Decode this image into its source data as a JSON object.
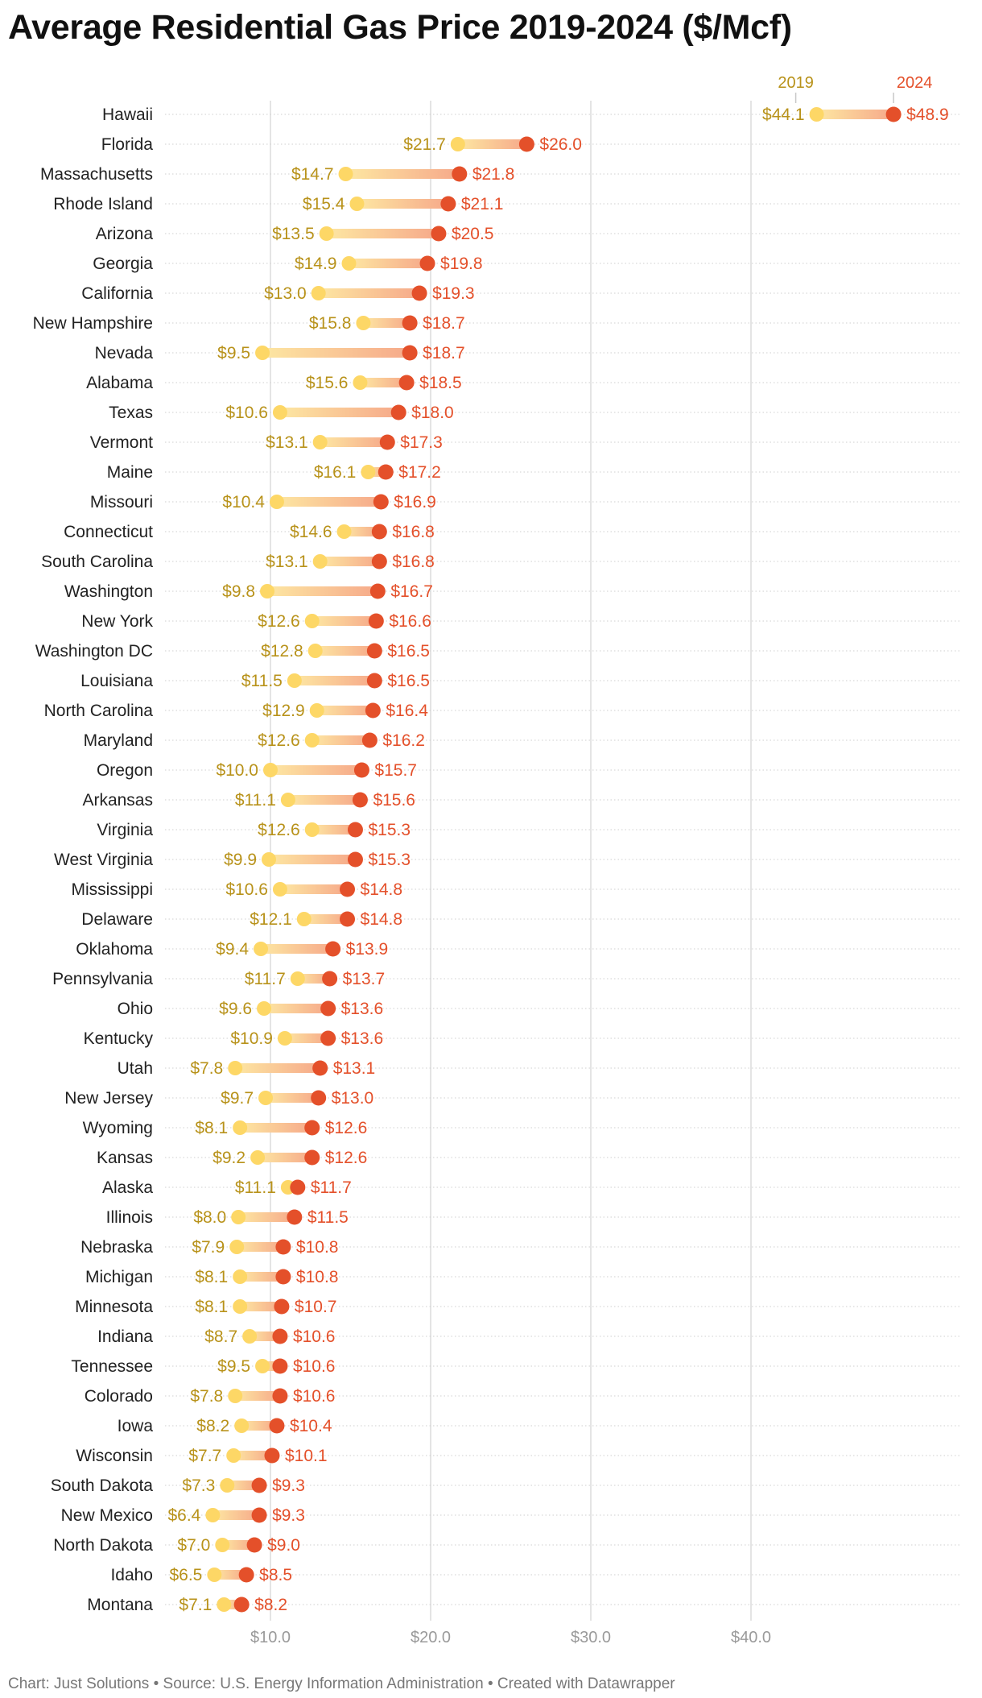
{
  "title": "Average Residential Gas Price 2019-2024 ($/Mcf)",
  "footer": {
    "chart_by": "Chart: Just Solutions",
    "source": "Source: U.S. Energy Information Administration",
    "created_with": "Created with Datawrapper",
    "separator": " • "
  },
  "colors": {
    "y2019": "#fdd766",
    "y2024": "#e4502a",
    "label2019": "#b8921a",
    "label2024": "#e4502a",
    "grid": "#dcdcdc"
  },
  "chart_data": {
    "type": "dot-range",
    "title": "Average Residential Gas Price 2019-2024 ($/Mcf)",
    "series": [
      {
        "name": "2019",
        "key": "v2019"
      },
      {
        "name": "2024",
        "key": "v2024"
      }
    ],
    "xlim": [
      3,
      50
    ],
    "x_ticks": [
      10,
      20,
      30,
      40
    ],
    "x_tick_labels": [
      "$10.0",
      "$20.0",
      "$30.0",
      "$40.0"
    ],
    "value_prefix": "$",
    "rows": [
      {
        "state": "Hawaii",
        "v2019": 44.1,
        "v2024": 48.9
      },
      {
        "state": "Florida",
        "v2019": 21.7,
        "v2024": 26.0
      },
      {
        "state": "Massachusetts",
        "v2019": 14.7,
        "v2024": 21.8
      },
      {
        "state": "Rhode Island",
        "v2019": 15.4,
        "v2024": 21.1
      },
      {
        "state": "Arizona",
        "v2019": 13.5,
        "v2024": 20.5
      },
      {
        "state": "Georgia",
        "v2019": 14.9,
        "v2024": 19.8
      },
      {
        "state": "California",
        "v2019": 13.0,
        "v2024": 19.3
      },
      {
        "state": "New Hampshire",
        "v2019": 15.8,
        "v2024": 18.7
      },
      {
        "state": "Nevada",
        "v2019": 9.5,
        "v2024": 18.7
      },
      {
        "state": "Alabama",
        "v2019": 15.6,
        "v2024": 18.5
      },
      {
        "state": "Texas",
        "v2019": 10.6,
        "v2024": 18.0
      },
      {
        "state": "Vermont",
        "v2019": 13.1,
        "v2024": 17.3
      },
      {
        "state": "Maine",
        "v2019": 16.1,
        "v2024": 17.2
      },
      {
        "state": "Missouri",
        "v2019": 10.4,
        "v2024": 16.9
      },
      {
        "state": "Connecticut",
        "v2019": 14.6,
        "v2024": 16.8
      },
      {
        "state": "South Carolina",
        "v2019": 13.1,
        "v2024": 16.8
      },
      {
        "state": "Washington",
        "v2019": 9.8,
        "v2024": 16.7
      },
      {
        "state": "New York",
        "v2019": 12.6,
        "v2024": 16.6
      },
      {
        "state": "Washington DC",
        "v2019": 12.8,
        "v2024": 16.5
      },
      {
        "state": "Louisiana",
        "v2019": 11.5,
        "v2024": 16.5
      },
      {
        "state": "North Carolina",
        "v2019": 12.9,
        "v2024": 16.4
      },
      {
        "state": "Maryland",
        "v2019": 12.6,
        "v2024": 16.2
      },
      {
        "state": "Oregon",
        "v2019": 10.0,
        "v2024": 15.7
      },
      {
        "state": "Arkansas",
        "v2019": 11.1,
        "v2024": 15.6
      },
      {
        "state": "Virginia",
        "v2019": 12.6,
        "v2024": 15.3
      },
      {
        "state": "West Virginia",
        "v2019": 9.9,
        "v2024": 15.3
      },
      {
        "state": "Mississippi",
        "v2019": 10.6,
        "v2024": 14.8
      },
      {
        "state": "Delaware",
        "v2019": 12.1,
        "v2024": 14.8
      },
      {
        "state": "Oklahoma",
        "v2019": 9.4,
        "v2024": 13.9
      },
      {
        "state": "Pennsylvania",
        "v2019": 11.7,
        "v2024": 13.7
      },
      {
        "state": "Ohio",
        "v2019": 9.6,
        "v2024": 13.6
      },
      {
        "state": "Kentucky",
        "v2019": 10.9,
        "v2024": 13.6
      },
      {
        "state": "Utah",
        "v2019": 7.8,
        "v2024": 13.1
      },
      {
        "state": "New Jersey",
        "v2019": 9.7,
        "v2024": 13.0
      },
      {
        "state": "Wyoming",
        "v2019": 8.1,
        "v2024": 12.6
      },
      {
        "state": "Kansas",
        "v2019": 9.2,
        "v2024": 12.6
      },
      {
        "state": "Alaska",
        "v2019": 11.1,
        "v2024": 11.7
      },
      {
        "state": "Illinois",
        "v2019": 8.0,
        "v2024": 11.5
      },
      {
        "state": "Nebraska",
        "v2019": 7.9,
        "v2024": 10.8
      },
      {
        "state": "Michigan",
        "v2019": 8.1,
        "v2024": 10.8
      },
      {
        "state": "Minnesota",
        "v2019": 8.1,
        "v2024": 10.7
      },
      {
        "state": "Indiana",
        "v2019": 8.7,
        "v2024": 10.6
      },
      {
        "state": "Tennessee",
        "v2019": 9.5,
        "v2024": 10.6
      },
      {
        "state": "Colorado",
        "v2019": 7.8,
        "v2024": 10.6
      },
      {
        "state": "Iowa",
        "v2019": 8.2,
        "v2024": 10.4
      },
      {
        "state": "Wisconsin",
        "v2019": 7.7,
        "v2024": 10.1
      },
      {
        "state": "South Dakota",
        "v2019": 7.3,
        "v2024": 9.3
      },
      {
        "state": "New Mexico",
        "v2019": 6.4,
        "v2024": 9.3
      },
      {
        "state": "North Dakota",
        "v2019": 7.0,
        "v2024": 9.0
      },
      {
        "state": "Idaho",
        "v2019": 6.5,
        "v2024": 8.5
      },
      {
        "state": "Montana",
        "v2019": 7.1,
        "v2024": 8.2
      }
    ]
  }
}
